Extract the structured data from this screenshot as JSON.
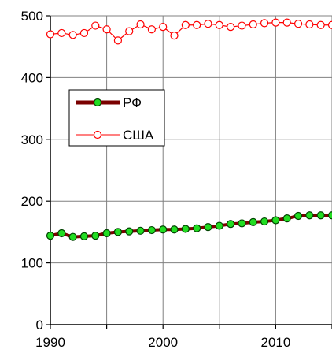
{
  "chart_data": {
    "type": "line",
    "title": "",
    "xlabel": "",
    "ylabel": "",
    "xlim": [
      1990,
      2015
    ],
    "ylim": [
      0,
      500
    ],
    "x_ticks": [
      1990,
      2000,
      2010
    ],
    "y_ticks": [
      0,
      100,
      200,
      300,
      400,
      500
    ],
    "grid": true,
    "legend_position": "upper-left",
    "series": [
      {
        "name": "РФ",
        "color": "#7a0000",
        "marker_fill": "#22dd22",
        "marker_edge": "#004400",
        "line_style": "thick",
        "x": [
          1990,
          1991,
          1992,
          1993,
          1994,
          1995,
          1996,
          1997,
          1998,
          1999,
          2000,
          2001,
          2002,
          2003,
          2004,
          2005,
          2006,
          2007,
          2008,
          2009,
          2010,
          2011,
          2012,
          2013,
          2014,
          2015
        ],
        "values": [
          144,
          148,
          142,
          143,
          144,
          148,
          150,
          151,
          152,
          153,
          154,
          154,
          155,
          156,
          158,
          160,
          163,
          164,
          166,
          167,
          169,
          172,
          176,
          177,
          177,
          177
        ]
      },
      {
        "name": "США",
        "color": "#ff0000",
        "marker_fill": "#ffffff",
        "marker_edge": "#ff0000",
        "line_style": "thin",
        "x": [
          1990,
          1991,
          1992,
          1993,
          1994,
          1995,
          1996,
          1997,
          1998,
          1999,
          2000,
          2001,
          2002,
          2003,
          2004,
          2005,
          2006,
          2007,
          2008,
          2009,
          2010,
          2011,
          2012,
          2013,
          2014,
          2015
        ],
        "values": [
          470,
          472,
          469,
          472,
          484,
          478,
          460,
          475,
          486,
          478,
          482,
          468,
          485,
          485,
          487,
          485,
          482,
          484,
          486,
          488,
          489,
          489,
          487,
          486,
          485,
          485
        ]
      }
    ]
  }
}
